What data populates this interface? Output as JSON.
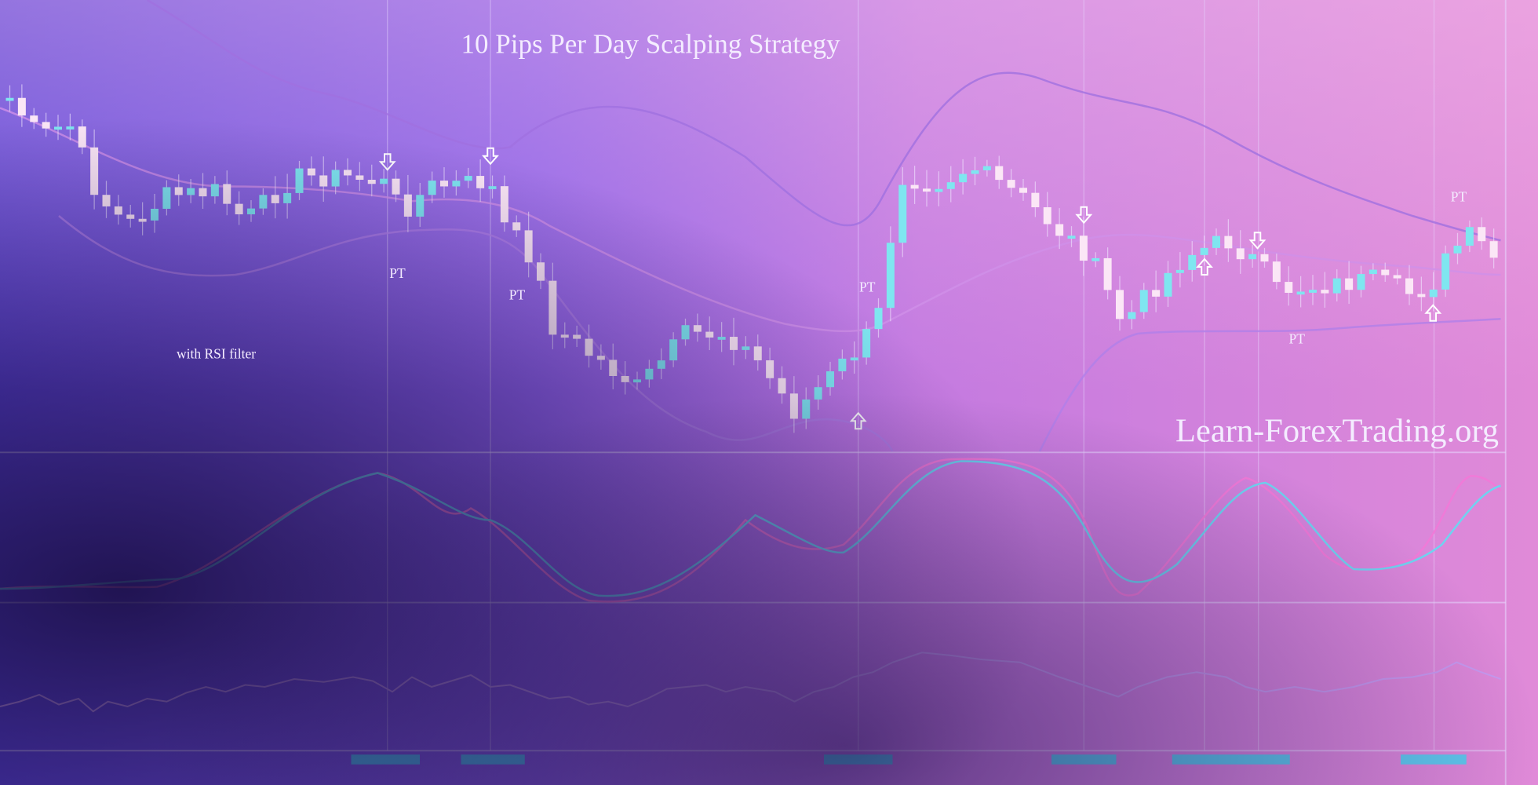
{
  "header": {
    "title": "10 Pips Per Day Scalping Strategy",
    "subtitle": "with RSI filter"
  },
  "watermark": "Learn-ForexTrading.org",
  "annotations": [
    "PT",
    "PT",
    "PT",
    "PT",
    "PT"
  ]
}
